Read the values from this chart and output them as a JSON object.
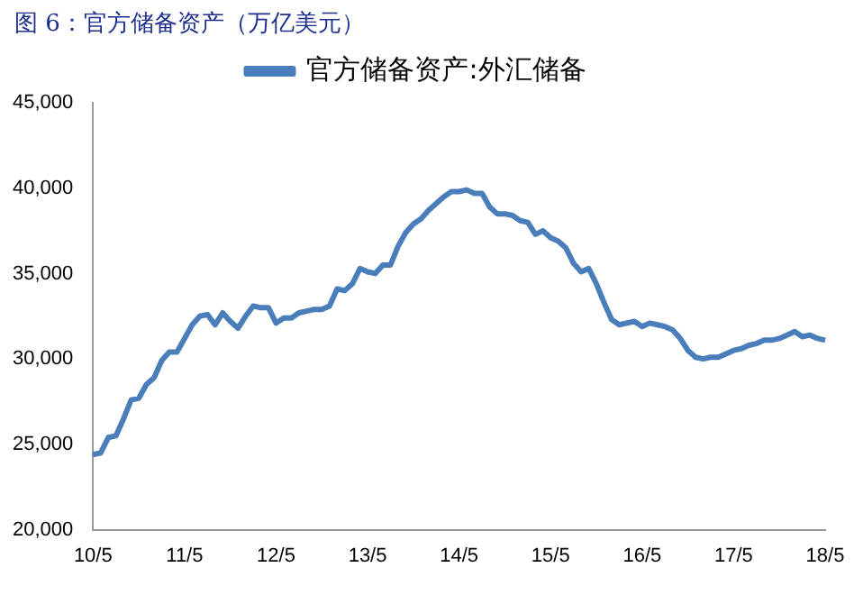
{
  "chart_data": {
    "type": "line",
    "title": "图 6：官方储备资产（万亿美元）",
    "categories": [
      "10/5",
      null,
      null,
      null,
      null,
      null,
      null,
      null,
      null,
      null,
      null,
      null,
      "11/5",
      null,
      null,
      null,
      null,
      null,
      null,
      null,
      null,
      null,
      null,
      null,
      "12/5",
      null,
      null,
      null,
      null,
      null,
      null,
      null,
      null,
      null,
      null,
      null,
      "13/5",
      null,
      null,
      null,
      null,
      null,
      null,
      null,
      null,
      null,
      null,
      null,
      "14/5",
      null,
      null,
      null,
      null,
      null,
      null,
      null,
      null,
      null,
      null,
      null,
      "15/5",
      null,
      null,
      null,
      null,
      null,
      null,
      null,
      null,
      null,
      null,
      null,
      "16/5",
      null,
      null,
      null,
      null,
      null,
      null,
      null,
      null,
      null,
      null,
      null,
      "17/5",
      null,
      null,
      null,
      null,
      null,
      null,
      null,
      null,
      null,
      null,
      null,
      "18/5"
    ],
    "series": [
      {
        "name": "官方储备资产:外汇储备",
        "color": "#4a7ebb",
        "values": [
          24400,
          24500,
          25400,
          25500,
          26500,
          27600,
          27700,
          28500,
          28900,
          29900,
          30400,
          30400,
          31200,
          32000,
          32500,
          32600,
          32000,
          32700,
          32200,
          31800,
          32500,
          33100,
          33000,
          33000,
          32100,
          32400,
          32400,
          32700,
          32800,
          32900,
          32900,
          33100,
          34100,
          34000,
          34400,
          35300,
          35100,
          35000,
          35500,
          35500,
          36600,
          37400,
          37900,
          38200,
          38700,
          39100,
          39500,
          39800,
          39800,
          39900,
          39700,
          39700,
          38900,
          38500,
          38500,
          38400,
          38100,
          38000,
          37300,
          37500,
          37100,
          36900,
          36500,
          35600,
          35100,
          35300,
          34400,
          33300,
          32300,
          32000,
          32100,
          32200,
          31900,
          32100,
          32000,
          31900,
          31700,
          31200,
          30500,
          30100,
          30000,
          30100,
          30100,
          30300,
          30500,
          30600,
          30800,
          30900,
          31100,
          31100,
          31200,
          31400,
          31600,
          31300,
          31400,
          31200,
          31100
        ]
      }
    ],
    "ylim": [
      20000,
      45000
    ],
    "yticks": [
      {
        "value": 20000,
        "label": "20,000"
      },
      {
        "value": 25000,
        "label": "25,000"
      },
      {
        "value": 30000,
        "label": "30,000"
      },
      {
        "value": 35000,
        "label": "35,000"
      },
      {
        "value": 40000,
        "label": "40,000"
      },
      {
        "value": 45000,
        "label": "45,000"
      }
    ],
    "grid": false,
    "legend": "top",
    "marker": "none",
    "line_style": "solid"
  }
}
